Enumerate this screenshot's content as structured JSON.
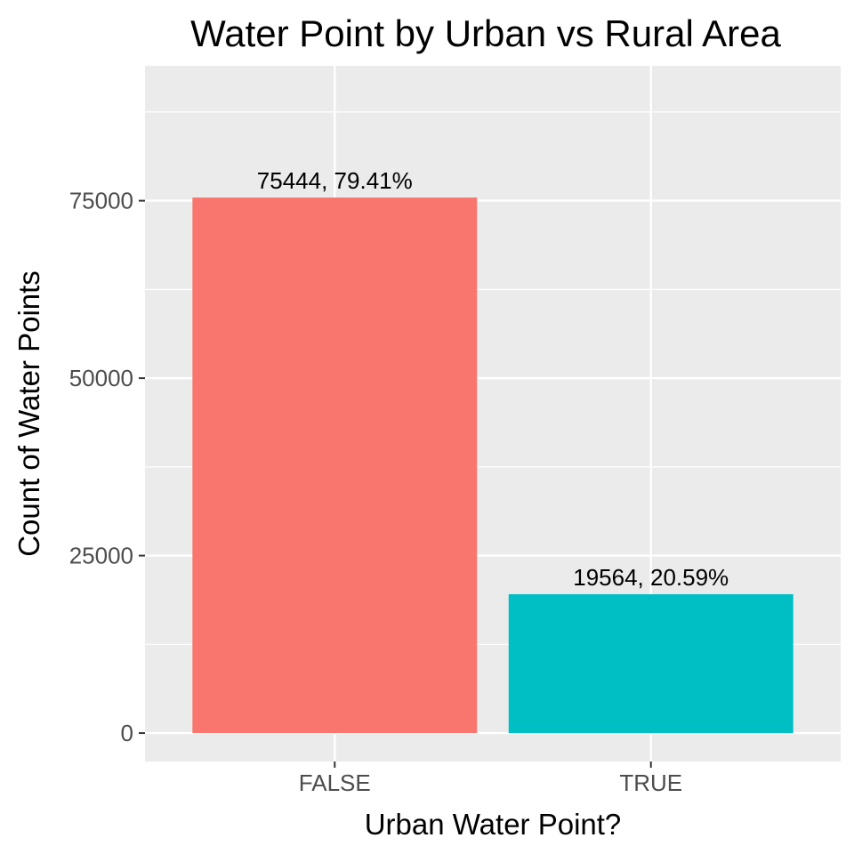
{
  "chart_data": {
    "type": "bar",
    "title": "Water Point by Urban vs Rural Area",
    "xlabel": "Urban Water Point?",
    "ylabel": "Count of Water Points",
    "categories": [
      "FALSE",
      "TRUE"
    ],
    "values": [
      75444,
      19564
    ],
    "data_labels": [
      "75444, 79.41%",
      "19564, 20.59%"
    ],
    "colors": [
      "#F8766D",
      "#00BFC4"
    ],
    "ylim": [
      -4000,
      94000
    ],
    "yticks": [
      0,
      25000,
      50000,
      75000
    ],
    "ytick_labels": [
      "0",
      "25000",
      "50000",
      "75000"
    ],
    "panel_background": "#EBEBEB",
    "grid": true,
    "legend": "none"
  }
}
